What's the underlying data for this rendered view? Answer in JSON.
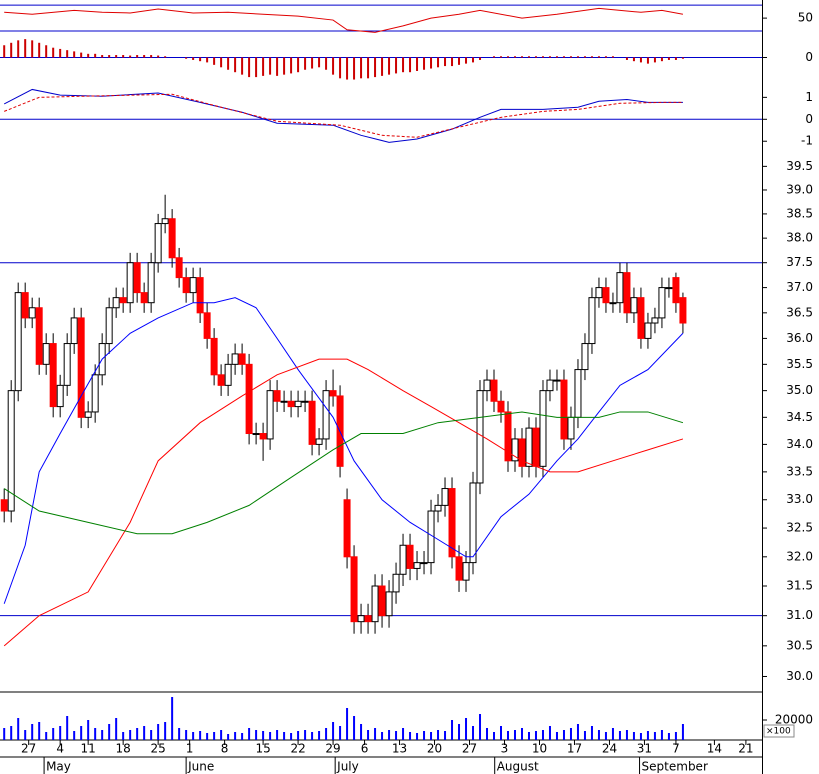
{
  "chart_data": [
    {
      "type": "line",
      "xlim": [
        -0.6,
        108.3
      ],
      "ylim": [
        27,
        78
      ],
      "yticks": [
        50
      ],
      "hlines": [
        70,
        30
      ],
      "hline_color": "#0000cc",
      "series": [
        {
          "color": "#e00000",
          "x": [
            0,
            4,
            10,
            14,
            18,
            22,
            27,
            32,
            37,
            42,
            47,
            49,
            53,
            57,
            61,
            65,
            68,
            74,
            79,
            85,
            91,
            94,
            97
          ],
          "values": [
            59,
            56,
            62,
            59,
            58,
            64,
            58,
            59,
            56,
            53,
            47,
            32,
            28,
            38,
            50,
            56,
            62,
            50,
            56,
            65,
            59,
            62,
            56
          ]
        }
      ]
    },
    {
      "type": "bar",
      "xlim": [
        -0.6,
        108.3
      ],
      "ylim": [
        -1,
        1
      ],
      "yticks": [
        0
      ],
      "hlines": [
        0
      ],
      "hline_color": "#0000cc",
      "color": "#cc0000",
      "values": [
        0.5,
        0.6,
        0.7,
        0.75,
        0.7,
        0.6,
        0.5,
        0.4,
        0.35,
        0.3,
        0.25,
        0.2,
        0.15,
        0.15,
        0.1,
        0.1,
        0.1,
        0.1,
        0.08,
        0.1,
        0.1,
        0.1,
        0.08,
        0.05,
        0,
        0,
        -0.05,
        -0.1,
        -0.15,
        -0.2,
        -0.3,
        -0.4,
        -0.5,
        -0.6,
        -0.7,
        -0.8,
        -0.8,
        -0.75,
        -0.7,
        -0.75,
        -0.7,
        -0.65,
        -0.6,
        -0.5,
        -0.45,
        -0.4,
        -0.5,
        -0.7,
        -0.85,
        -0.9,
        -0.9,
        -0.85,
        -0.85,
        -0.8,
        -0.75,
        -0.7,
        -0.65,
        -0.6,
        -0.6,
        -0.55,
        -0.5,
        -0.45,
        -0.4,
        -0.35,
        -0.35,
        -0.3,
        -0.25,
        -0.2,
        -0.1,
        0,
        0.05,
        0.05,
        0.05,
        0.05,
        0.05,
        0.05,
        0.05,
        0.05,
        0.05,
        0.05,
        0.05,
        0.05,
        0.05,
        0.05,
        0.05,
        0.05,
        0.05,
        0.05,
        0,
        -0.1,
        -0.15,
        -0.2,
        -0.25,
        -0.2,
        -0.15,
        -0.1,
        -0.1,
        -0.05
      ]
    },
    {
      "type": "line",
      "xlim": [
        -0.6,
        108.3
      ],
      "ylim": [
        -1.4,
        1.7
      ],
      "yticks": [
        1,
        0,
        -1
      ],
      "hlines": [
        0
      ],
      "hline_color": "#0000cc",
      "series": [
        {
          "color": "#0000cc",
          "x": [
            0,
            4,
            8,
            14,
            22,
            28,
            34,
            39,
            47,
            51,
            55,
            59,
            64,
            68,
            71,
            77,
            82,
            85,
            89,
            92,
            97
          ],
          "values": [
            0.7,
            1.36,
            1.1,
            1.05,
            1.2,
            0.77,
            0.32,
            -0.18,
            -0.27,
            -0.73,
            -1.05,
            -0.9,
            -0.45,
            0.09,
            0.45,
            0.45,
            0.55,
            0.82,
            0.9,
            0.77,
            0.77
          ]
        },
        {
          "color": "#e00000",
          "dash": true,
          "x": [
            0,
            5,
            11,
            24,
            31,
            39,
            48,
            54,
            59,
            65,
            71,
            77,
            82,
            88,
            94,
            97
          ],
          "values": [
            0.36,
            1.0,
            1.05,
            1.14,
            0.55,
            -0.09,
            -0.27,
            -0.73,
            -0.82,
            -0.36,
            0.09,
            0.36,
            0.45,
            0.73,
            0.77,
            0.77
          ]
        }
      ]
    },
    {
      "type": "candlestick",
      "xlim": [
        -0.6,
        108.3
      ],
      "ylim": [
        29.75,
        39.85
      ],
      "log_scale": true,
      "yticks": [
        39.5,
        {
          "value": 39.0,
          "label": "39.0"
        },
        38.5,
        {
          "value": 38.0,
          "label": "38.0"
        },
        37.5,
        {
          "value": 37.0,
          "label": "37.0"
        },
        36.5,
        {
          "value": 36.0,
          "label": "36.0"
        },
        35.5,
        {
          "value": 35.0,
          "label": "35.0"
        },
        34.5,
        {
          "value": 34.0,
          "label": "34.0"
        },
        33.5,
        {
          "value": 33.0,
          "label": "33.0"
        },
        32.5,
        {
          "value": 32.0,
          "label": "32.0"
        },
        31.5,
        {
          "value": 31.0,
          "label": "31.0"
        },
        30.5,
        {
          "value": 30.0,
          "label": "30.0"
        }
      ],
      "hlines": [
        37.5,
        31.0
      ],
      "hline_color": "#0000cc",
      "up_color": "#ffffff",
      "down_color": "#ff0000",
      "open": [
        33.0,
        32.8,
        35.0,
        36.9,
        36.4,
        36.6,
        35.5,
        35.9,
        34.7,
        35.1,
        35.9,
        36.4,
        34.5,
        34.6,
        35.3,
        35.9,
        36.6,
        36.8,
        36.7,
        37.5,
        36.9,
        36.7,
        37.5,
        38.3,
        38.4,
        37.6,
        37.2,
        36.9,
        37.2,
        36.5,
        36.0,
        35.3,
        35.1,
        35.5,
        35.7,
        35.5,
        34.2,
        34.2,
        34.1,
        35.0,
        34.8,
        34.8,
        34.7,
        34.8,
        34.8,
        34.0,
        34.1,
        35.0,
        34.9,
        33.0,
        32.0,
        30.9,
        31.0,
        30.9,
        31.5,
        31.0,
        31.4,
        31.7,
        32.2,
        31.8,
        31.9,
        31.9,
        32.8,
        32.9,
        33.2,
        32.0,
        31.6,
        31.9,
        33.3,
        35.0,
        35.2,
        34.8,
        34.6,
        33.7,
        34.1,
        33.6,
        34.3,
        33.6,
        35.0,
        35.2,
        35.2,
        34.1,
        34.5,
        35.4,
        35.9,
        36.8,
        37.0,
        36.7,
        36.7,
        37.3,
        36.5,
        36.8,
        36.0,
        36.3,
        36.4,
        37.0,
        37.2,
        36.8
      ],
      "high": [
        33.2,
        35.2,
        37.1,
        37.1,
        36.8,
        36.8,
        36.1,
        36.1,
        35.3,
        36.1,
        36.6,
        36.6,
        34.8,
        35.5,
        36.1,
        36.8,
        37.0,
        37.0,
        37.7,
        37.7,
        37.1,
        37.7,
        38.5,
        38.9,
        38.6,
        37.8,
        37.4,
        37.4,
        37.4,
        36.7,
        36.2,
        35.5,
        35.7,
        35.9,
        35.9,
        35.7,
        34.4,
        34.4,
        35.2,
        35.2,
        35.0,
        35.0,
        35.0,
        35.0,
        35.0,
        34.3,
        35.2,
        35.4,
        35.1,
        33.2,
        32.2,
        31.2,
        31.2,
        31.7,
        31.7,
        31.6,
        31.9,
        32.4,
        32.4,
        32.1,
        32.1,
        33.0,
        33.1,
        33.4,
        33.4,
        32.2,
        32.1,
        33.5,
        35.2,
        35.4,
        35.4,
        35.0,
        34.8,
        34.3,
        34.3,
        34.5,
        34.5,
        35.2,
        35.4,
        35.4,
        35.4,
        34.7,
        35.6,
        36.1,
        37.0,
        37.2,
        37.2,
        36.9,
        37.5,
        37.5,
        37.0,
        37.0,
        36.5,
        36.6,
        37.2,
        37.2,
        37.3,
        36.9
      ],
      "low": [
        32.6,
        32.6,
        34.8,
        36.2,
        36.2,
        35.3,
        35.3,
        34.5,
        34.5,
        34.9,
        35.7,
        34.3,
        34.3,
        34.4,
        35.1,
        35.7,
        36.4,
        36.5,
        36.5,
        36.7,
        36.5,
        36.5,
        37.3,
        38.1,
        37.4,
        37.0,
        36.7,
        36.7,
        36.3,
        35.8,
        35.1,
        34.9,
        34.9,
        35.3,
        35.3,
        34.0,
        34.0,
        33.7,
        33.9,
        34.6,
        34.6,
        34.5,
        34.5,
        34.6,
        33.8,
        33.8,
        33.9,
        34.7,
        33.4,
        31.8,
        30.7,
        30.7,
        30.7,
        30.7,
        30.8,
        30.8,
        31.2,
        31.5,
        31.6,
        31.6,
        31.7,
        31.7,
        32.6,
        32.7,
        31.8,
        31.4,
        31.4,
        31.7,
        33.1,
        34.8,
        34.6,
        34.4,
        33.5,
        33.5,
        33.4,
        33.4,
        33.4,
        33.4,
        34.8,
        35.0,
        33.9,
        33.9,
        34.3,
        35.2,
        35.7,
        36.6,
        36.5,
        36.5,
        36.5,
        36.3,
        36.3,
        35.8,
        35.8,
        36.1,
        36.2,
        36.8,
        36.5,
        36.1
      ],
      "close": [
        32.8,
        35.0,
        36.9,
        36.4,
        36.6,
        35.5,
        35.9,
        34.7,
        35.1,
        35.9,
        36.4,
        34.5,
        34.6,
        35.3,
        35.9,
        36.6,
        36.8,
        36.7,
        37.5,
        36.9,
        36.7,
        37.5,
        38.3,
        38.4,
        37.6,
        37.2,
        36.9,
        37.2,
        36.5,
        36.0,
        35.3,
        35.1,
        35.5,
        35.7,
        35.5,
        34.2,
        34.2,
        34.1,
        35.0,
        34.8,
        34.8,
        34.7,
        34.8,
        34.8,
        34.0,
        34.1,
        35.0,
        34.9,
        33.6,
        32.0,
        30.9,
        31.0,
        30.9,
        31.5,
        31.0,
        31.4,
        31.7,
        32.2,
        31.8,
        31.9,
        31.9,
        32.8,
        32.9,
        33.2,
        32.0,
        31.6,
        31.9,
        33.3,
        35.0,
        35.2,
        34.8,
        34.6,
        33.7,
        34.1,
        33.6,
        34.3,
        33.6,
        35.0,
        35.2,
        35.2,
        34.1,
        34.5,
        35.4,
        35.9,
        36.8,
        37.0,
        36.7,
        36.7,
        37.3,
        36.5,
        36.8,
        36.0,
        36.3,
        36.4,
        37.0,
        37.0,
        36.7,
        36.3
      ],
      "series": [
        {
          "color": "#0000ff",
          "x": [
            0,
            3,
            5,
            8,
            11,
            14,
            18,
            22,
            27,
            30,
            33,
            36,
            39,
            42,
            47,
            50,
            54,
            58,
            62,
            66,
            67,
            71,
            75,
            79,
            82,
            85,
            88,
            92,
            97
          ],
          "values": [
            31.2,
            32.2,
            33.5,
            34.2,
            34.9,
            35.6,
            36.1,
            36.4,
            36.7,
            36.7,
            36.8,
            36.6,
            36.0,
            35.4,
            34.5,
            33.7,
            33.0,
            32.6,
            32.3,
            32.0,
            32.0,
            32.7,
            33.1,
            33.7,
            34.1,
            34.6,
            35.1,
            35.4,
            36.1
          ]
        },
        {
          "color": "#ff0000",
          "x": [
            0,
            5,
            12,
            18,
            22,
            28,
            34,
            39,
            45,
            49,
            52,
            57,
            61,
            65,
            69,
            74,
            78,
            82,
            87,
            92,
            97
          ],
          "values": [
            30.5,
            31.0,
            31.4,
            32.6,
            33.7,
            34.4,
            34.9,
            35.3,
            35.6,
            35.6,
            35.4,
            35.0,
            34.7,
            34.4,
            34.1,
            33.7,
            33.5,
            33.5,
            33.7,
            33.9,
            34.1
          ]
        },
        {
          "color": "#008000",
          "x": [
            0,
            5,
            12,
            19,
            24,
            29,
            35,
            41,
            47,
            51,
            57,
            62,
            68,
            74,
            79,
            85,
            88,
            92,
            97
          ],
          "values": [
            33.2,
            32.8,
            32.6,
            32.4,
            32.4,
            32.6,
            32.9,
            33.4,
            33.9,
            34.2,
            34.2,
            34.4,
            34.5,
            34.6,
            34.5,
            34.5,
            34.6,
            34.6,
            34.4
          ]
        }
      ]
    },
    {
      "type": "bar",
      "xlim": [
        -0.6,
        108.3
      ],
      "ylim": [
        0,
        48000
      ],
      "yticks": [
        20000
      ],
      "unit_label": "×100",
      "color": "#0000ff",
      "values": [
        12000,
        14000,
        22000,
        10000,
        16000,
        18000,
        8000,
        12000,
        14000,
        24000,
        9000,
        14000,
        20000,
        12000,
        10000,
        16000,
        22000,
        8000,
        10000,
        12000,
        14000,
        10000,
        16000,
        18000,
        43000,
        12000,
        10000,
        8000,
        9000,
        7000,
        8000,
        10000,
        6000,
        8000,
        7000,
        12000,
        10000,
        9000,
        8000,
        10000,
        8000,
        7000,
        9000,
        10000,
        8000,
        9000,
        12000,
        18000,
        14000,
        32000,
        24000,
        16000,
        10000,
        12000,
        8000,
        10000,
        9000,
        12000,
        8000,
        7000,
        9000,
        8000,
        10000,
        9000,
        20000,
        16000,
        22000,
        14000,
        26000,
        12000,
        8000,
        14000,
        9000,
        10000,
        12000,
        8000,
        9000,
        10000,
        14000,
        8000,
        10000,
        12000,
        16000,
        9000,
        14000,
        10000,
        8000,
        12000,
        9000,
        10000,
        8000,
        7000,
        9000,
        8000,
        10000,
        7000,
        8000,
        16000
      ],
      "xticks": [
        {
          "value": 3.5,
          "label": "27"
        },
        {
          "value": 8,
          "label": "4"
        },
        {
          "value": 12,
          "label": "11"
        },
        {
          "value": 17,
          "label": "18"
        },
        {
          "value": 22,
          "label": "25"
        },
        {
          "value": 26.5,
          "label": "1"
        },
        {
          "value": 31.5,
          "label": "8"
        },
        {
          "value": 37,
          "label": "15"
        },
        {
          "value": 42,
          "label": "22"
        },
        {
          "value": 47,
          "label": "29"
        },
        {
          "value": 51.5,
          "label": "6"
        },
        {
          "value": 56.5,
          "label": "13"
        },
        {
          "value": 61.5,
          "label": "20"
        },
        {
          "value": 66.5,
          "label": "27"
        },
        {
          "value": 71.5,
          "label": "3"
        },
        {
          "value": 76.5,
          "label": "10"
        },
        {
          "value": 81.5,
          "label": "17"
        },
        {
          "value": 86.5,
          "label": "24"
        },
        {
          "value": 91.5,
          "label": "31"
        },
        {
          "value": 96,
          "label": "7"
        },
        {
          "value": 101.5,
          "label": "14"
        },
        {
          "value": 106,
          "label": "21"
        }
      ],
      "month_ticks": [
        {
          "value": 5.7,
          "label": "May"
        },
        {
          "value": 26,
          "label": "June"
        },
        {
          "value": 47.3,
          "label": "July"
        },
        {
          "value": 70.1,
          "label": "August"
        },
        {
          "value": 90.8,
          "label": "September"
        }
      ]
    }
  ]
}
